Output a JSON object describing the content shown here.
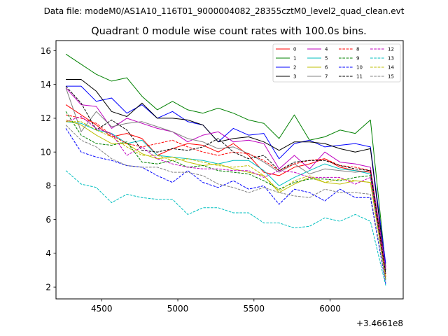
{
  "chart_data": {
    "type": "line",
    "suptitle": "Data file: modeM0/AS1A10_116T01_9000004082_28355cztM0_level2_quad_clean.evt",
    "title": "Quadrant 0 module wise count rates with 100.0s bins.",
    "xlabel": "",
    "ylabel": "",
    "x_offset_label": "+3.4661e8",
    "xlim": [
      4200,
      6480
    ],
    "ylim": [
      1.3,
      16.6
    ],
    "xticks": [
      4500,
      5000,
      5500,
      6000
    ],
    "yticks": [
      2,
      4,
      6,
      8,
      10,
      12,
      14,
      16
    ],
    "legend_position": "upper right",
    "legend_columns": 4,
    "x": [
      4265,
      4365,
      4465,
      4565,
      4665,
      4765,
      4865,
      4965,
      5065,
      5165,
      5265,
      5365,
      5465,
      5565,
      5665,
      5765,
      5865,
      5965,
      6065,
      6165,
      6265,
      6365
    ],
    "series": [
      {
        "name": "0",
        "color": "#ff0000",
        "dash": "solid",
        "values": [
          12.8,
          12.2,
          11.6,
          10.9,
          11.1,
          10.8,
          9.8,
          10.2,
          10.5,
          10.4,
          10.0,
          10.5,
          9.8,
          8.8,
          8.6,
          9.1,
          9.3,
          9.6,
          9.1,
          8.9,
          8.8,
          2.6
        ]
      },
      {
        "name": "1",
        "color": "#008000",
        "dash": "solid",
        "values": [
          15.8,
          15.2,
          14.6,
          14.2,
          14.4,
          13.3,
          12.5,
          13.0,
          12.5,
          12.3,
          12.6,
          12.3,
          11.9,
          11.7,
          10.8,
          12.2,
          10.7,
          10.9,
          11.3,
          11.1,
          11.9,
          3.2
        ]
      },
      {
        "name": "2",
        "color": "#0000ff",
        "dash": "solid",
        "values": [
          13.9,
          13.9,
          13.0,
          13.2,
          12.3,
          12.8,
          12.0,
          12.4,
          11.8,
          11.6,
          10.6,
          11.4,
          11.0,
          11.1,
          9.6,
          10.5,
          10.7,
          10.3,
          10.4,
          10.5,
          10.3,
          3.4
        ]
      },
      {
        "name": "3",
        "color": "#000000",
        "dash": "solid",
        "values": [
          14.3,
          14.3,
          13.6,
          12.4,
          12.1,
          12.9,
          12.0,
          12.0,
          11.9,
          11.6,
          10.6,
          10.8,
          10.9,
          10.6,
          10.1,
          10.6,
          10.6,
          10.5,
          10.2,
          10.0,
          10.2,
          3.0
        ]
      },
      {
        "name": "4",
        "color": "#bf00bf",
        "dash": "solid",
        "values": [
          13.8,
          12.8,
          12.7,
          11.4,
          12.0,
          11.7,
          11.4,
          11.2,
          10.6,
          11.0,
          11.2,
          10.6,
          10.7,
          10.5,
          9.0,
          9.8,
          9.0,
          10.0,
          9.4,
          9.3,
          9.1,
          3.1
        ]
      },
      {
        "name": "5",
        "color": "#00bfbf",
        "dash": "solid",
        "values": [
          11.8,
          11.7,
          11.3,
          11.1,
          10.5,
          10.7,
          9.8,
          9.7,
          9.6,
          9.5,
          9.3,
          9.5,
          9.5,
          8.9,
          8.0,
          8.5,
          8.9,
          9.3,
          9.0,
          8.9,
          8.7,
          2.4
        ]
      },
      {
        "name": "6",
        "color": "#bfbf00",
        "dash": "solid",
        "values": [
          11.9,
          11.6,
          11.0,
          10.5,
          10.5,
          9.9,
          9.6,
          9.7,
          9.4,
          9.2,
          9.3,
          9.0,
          8.8,
          8.6,
          7.6,
          8.1,
          8.5,
          8.2,
          8.1,
          8.3,
          8.2,
          2.6
        ]
      },
      {
        "name": "7",
        "color": "#808080",
        "dash": "solid",
        "values": [
          13.8,
          11.2,
          12.4,
          11.5,
          11.7,
          11.8,
          11.5,
          11.2,
          10.8,
          10.6,
          10.2,
          10.3,
          9.9,
          9.4,
          8.8,
          9.3,
          8.7,
          9.0,
          8.9,
          8.8,
          8.9,
          2.8
        ]
      },
      {
        "name": "8",
        "color": "#ff0000",
        "dash": "dashed",
        "values": [
          12.2,
          12.0,
          11.7,
          11.0,
          10.5,
          10.3,
          10.5,
          10.7,
          10.3,
          10.0,
          9.8,
          10.0,
          9.9,
          9.5,
          8.9,
          9.3,
          9.5,
          9.6,
          9.2,
          9.1,
          8.9,
          2.6
        ]
      },
      {
        "name": "9",
        "color": "#008000",
        "dash": "dashed",
        "values": [
          12.4,
          11.0,
          10.5,
          10.4,
          10.6,
          9.4,
          9.3,
          9.5,
          9.1,
          9.2,
          8.9,
          8.8,
          8.7,
          8.3,
          7.8,
          8.2,
          8.4,
          8.4,
          8.3,
          8.5,
          8.6,
          2.4
        ]
      },
      {
        "name": "10",
        "color": "#0000ff",
        "dash": "dashed",
        "values": [
          11.4,
          10.0,
          9.7,
          9.5,
          9.2,
          9.1,
          8.6,
          8.2,
          8.9,
          8.2,
          7.9,
          8.3,
          7.8,
          8.0,
          6.9,
          7.8,
          7.6,
          7.1,
          7.8,
          7.3,
          7.3,
          2.2
        ]
      },
      {
        "name": "11",
        "color": "#000000",
        "dash": "dashed",
        "values": [
          13.9,
          12.9,
          11.3,
          11.9,
          11.3,
          10.1,
          10.0,
          10.2,
          10.1,
          10.3,
          10.8,
          10.0,
          9.6,
          9.8,
          8.9,
          9.4,
          9.5,
          9.5,
          9.2,
          9.0,
          8.9,
          2.8
        ]
      },
      {
        "name": "12",
        "color": "#bf00bf",
        "dash": "dashed",
        "values": [
          11.8,
          12.1,
          11.4,
          11.1,
          9.8,
          10.3,
          9.6,
          9.3,
          9.1,
          9.0,
          9.0,
          8.9,
          8.9,
          8.5,
          8.9,
          8.8,
          8.5,
          8.5,
          8.5,
          8.1,
          8.5,
          2.5
        ]
      },
      {
        "name": "13",
        "color": "#00bfbf",
        "dash": "dashed",
        "values": [
          8.9,
          8.1,
          7.9,
          7.0,
          7.5,
          7.3,
          7.2,
          7.2,
          6.3,
          6.7,
          6.7,
          6.4,
          6.4,
          5.8,
          5.8,
          5.5,
          5.6,
          6.1,
          5.9,
          6.3,
          5.9,
          2.1
        ]
      },
      {
        "name": "14",
        "color": "#bfbf00",
        "dash": "dashed",
        "values": [
          11.8,
          11.8,
          11.3,
          10.9,
          10.3,
          9.8,
          9.8,
          9.5,
          9.6,
          9.4,
          9.2,
          9.1,
          9.2,
          8.6,
          7.7,
          8.3,
          8.6,
          8.2,
          8.4,
          8.3,
          8.2,
          2.5
        ]
      },
      {
        "name": "15",
        "color": "#808080",
        "dash": "dashed",
        "values": [
          11.6,
          10.7,
          10.3,
          9.6,
          9.2,
          9.1,
          9.1,
          8.8,
          8.8,
          8.6,
          8.1,
          7.9,
          7.6,
          7.9,
          7.6,
          7.4,
          7.3,
          7.8,
          7.6,
          7.6,
          7.5,
          2.3
        ]
      }
    ]
  }
}
